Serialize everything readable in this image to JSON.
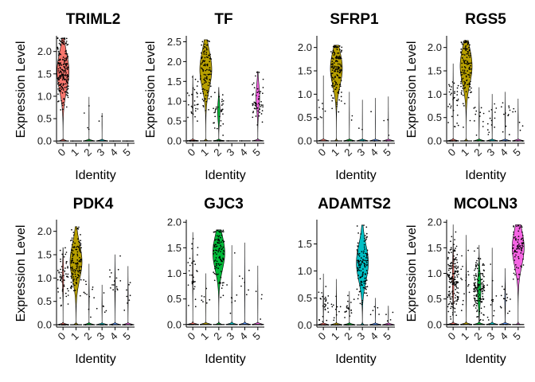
{
  "chart_data": [
    {
      "type": "violin",
      "title": "TRIML2",
      "ylabel": "Expression Level",
      "xlabel": "Identity",
      "categories": [
        "0",
        "1",
        "2",
        "3",
        "4",
        "5"
      ],
      "ylim": [
        -0.05,
        2.35
      ],
      "yticks": [
        0.0,
        0.5,
        1.0,
        1.5,
        2.0
      ],
      "ytick_labels": [
        "0.0",
        "0.5",
        "1.0",
        "1.5",
        "2.0"
      ],
      "colors": [
        "#F8766D",
        "#B79F00",
        "#00BA38",
        "#00BFC4",
        "#619CFF",
        "#F564E3"
      ],
      "groups": [
        {
          "identity": "0",
          "max": 2.3,
          "mode": 1.55,
          "frac_expr": 0.85,
          "n_points": 200
        },
        {
          "identity": "1",
          "max": 0.0,
          "mode": 0.0,
          "frac_expr": 0.0,
          "n_points": 1
        },
        {
          "identity": "2",
          "max": 0.98,
          "mode": 0.5,
          "frac_expr": 0.05,
          "n_points": 4
        },
        {
          "identity": "3",
          "max": 0.62,
          "mode": 0.4,
          "frac_expr": 0.05,
          "n_points": 2
        },
        {
          "identity": "4",
          "max": 0.0,
          "mode": 0.0,
          "frac_expr": 0.0,
          "n_points": 1
        },
        {
          "identity": "5",
          "max": 0.0,
          "mode": 0.0,
          "frac_expr": 0.0,
          "n_points": 1
        }
      ]
    },
    {
      "type": "violin",
      "title": "TF",
      "ylabel": "Expression Level",
      "xlabel": "Identity",
      "categories": [
        "0",
        "1",
        "2",
        "3",
        "4",
        "5"
      ],
      "ylim": [
        -0.06,
        2.65
      ],
      "yticks": [
        0.0,
        0.5,
        1.0,
        1.5,
        2.0,
        2.5
      ],
      "ytick_labels": [
        "0.0",
        "0.5",
        "1.0",
        "1.5",
        "2.0",
        "2.5"
      ],
      "colors": [
        "#F8766D",
        "#B79F00",
        "#00BA38",
        "#00BFC4",
        "#619CFF",
        "#F564E3"
      ],
      "groups": [
        {
          "identity": "0",
          "max": 1.65,
          "mode": 1.0,
          "frac_expr": 0.15,
          "n_points": 45
        },
        {
          "identity": "1",
          "max": 2.55,
          "mode": 1.8,
          "frac_expr": 0.92,
          "n_points": 110
        },
        {
          "identity": "2",
          "max": 1.35,
          "mode": 0.75,
          "frac_expr": 0.45,
          "n_points": 45
        },
        {
          "identity": "3",
          "max": 0.0,
          "mode": 0.0,
          "frac_expr": 0.0,
          "n_points": 1
        },
        {
          "identity": "4",
          "max": 0.0,
          "mode": 0.0,
          "frac_expr": 0.0,
          "n_points": 1
        },
        {
          "identity": "5",
          "max": 1.75,
          "mode": 1.1,
          "frac_expr": 0.55,
          "n_points": 55
        }
      ]
    },
    {
      "type": "violin",
      "title": "SFRP1",
      "ylabel": "",
      "xlabel": "Identity",
      "categories": [
        "0",
        "1",
        "2",
        "3",
        "4",
        "5"
      ],
      "ylim": [
        -0.05,
        2.25
      ],
      "yticks": [
        0.0,
        0.5,
        1.0,
        1.5,
        2.0
      ],
      "ytick_labels": [
        "0.0",
        "0.5",
        "1.0",
        "1.5",
        "2.0"
      ],
      "colors": [
        "#F8766D",
        "#B79F00",
        "#00BA38",
        "#00BFC4",
        "#619CFF",
        "#F564E3"
      ],
      "groups": [
        {
          "identity": "0",
          "max": 1.4,
          "mode": 0.5,
          "frac_expr": 0.03,
          "n_points": 8
        },
        {
          "identity": "1",
          "max": 2.05,
          "mode": 1.55,
          "frac_expr": 0.93,
          "n_points": 150
        },
        {
          "identity": "2",
          "max": 1.05,
          "mode": 0.5,
          "frac_expr": 0.05,
          "n_points": 6
        },
        {
          "identity": "3",
          "max": 0.88,
          "mode": 0.4,
          "frac_expr": 0.03,
          "n_points": 3
        },
        {
          "identity": "4",
          "max": 0.92,
          "mode": 0.4,
          "frac_expr": 0.03,
          "n_points": 3
        },
        {
          "identity": "5",
          "max": 0.95,
          "mode": 0.4,
          "frac_expr": 0.05,
          "n_points": 4
        }
      ]
    },
    {
      "type": "violin",
      "title": "RGS5",
      "ylabel": "Expression Level",
      "xlabel": "Identity",
      "categories": [
        "0",
        "1",
        "2",
        "3",
        "4",
        "5"
      ],
      "ylim": [
        -0.05,
        2.25
      ],
      "yticks": [
        0.0,
        0.5,
        1.0,
        1.5,
        2.0
      ],
      "ytick_labels": [
        "0.0",
        "0.5",
        "1.0",
        "1.5",
        "2.0"
      ],
      "colors": [
        "#F8766D",
        "#B79F00",
        "#00BA38",
        "#00BFC4",
        "#619CFF",
        "#F564E3"
      ],
      "groups": [
        {
          "identity": "0",
          "max": 1.65,
          "mode": 0.9,
          "frac_expr": 0.12,
          "n_points": 45
        },
        {
          "identity": "1",
          "max": 2.15,
          "mode": 1.6,
          "frac_expr": 0.92,
          "n_points": 130
        },
        {
          "identity": "2",
          "max": 1.15,
          "mode": 0.5,
          "frac_expr": 0.1,
          "n_points": 15
        },
        {
          "identity": "3",
          "max": 1.0,
          "mode": 0.45,
          "frac_expr": 0.1,
          "n_points": 15
        },
        {
          "identity": "4",
          "max": 1.05,
          "mode": 0.5,
          "frac_expr": 0.1,
          "n_points": 15
        },
        {
          "identity": "5",
          "max": 0.9,
          "mode": 0.45,
          "frac_expr": 0.08,
          "n_points": 10
        }
      ]
    },
    {
      "type": "violin",
      "title": "PDK4",
      "ylabel": "Expression Level",
      "xlabel": "Identity",
      "categories": [
        "0",
        "1",
        "2",
        "3",
        "4",
        "5"
      ],
      "ylim": [
        -0.05,
        2.25
      ],
      "yticks": [
        0.0,
        0.5,
        1.0,
        1.5,
        2.0
      ],
      "ytick_labels": [
        "0.0",
        "0.5",
        "1.0",
        "1.5",
        "2.0"
      ],
      "colors": [
        "#F8766D",
        "#B79F00",
        "#00BA38",
        "#00BFC4",
        "#619CFF",
        "#F564E3"
      ],
      "groups": [
        {
          "identity": "0",
          "max": 1.65,
          "mode": 1.05,
          "frac_expr": 0.3,
          "n_points": 70
        },
        {
          "identity": "1",
          "max": 2.1,
          "mode": 1.35,
          "frac_expr": 0.9,
          "n_points": 130
        },
        {
          "identity": "2",
          "max": 1.3,
          "mode": 0.6,
          "frac_expr": 0.12,
          "n_points": 15
        },
        {
          "identity": "3",
          "max": 0.85,
          "mode": 0.4,
          "frac_expr": 0.08,
          "n_points": 10
        },
        {
          "identity": "4",
          "max": 1.5,
          "mode": 0.8,
          "frac_expr": 0.15,
          "n_points": 18
        },
        {
          "identity": "5",
          "max": 1.25,
          "mode": 0.6,
          "frac_expr": 0.12,
          "n_points": 12
        }
      ]
    },
    {
      "type": "violin",
      "title": "GJC3",
      "ylabel": "",
      "xlabel": "Identity",
      "categories": [
        "0",
        "1",
        "2",
        "3",
        "4",
        "5"
      ],
      "ylim": [
        -0.05,
        2.05
      ],
      "yticks": [
        0.0,
        0.5,
        1.0,
        1.5,
        2.0
      ],
      "ytick_labels": [
        "0.0",
        "0.5",
        "1.0",
        "1.5",
        "2.0"
      ],
      "colors": [
        "#F8766D",
        "#B79F00",
        "#00BA38",
        "#00BFC4",
        "#619CFF",
        "#F564E3"
      ],
      "groups": [
        {
          "identity": "0",
          "max": 1.8,
          "mode": 1.0,
          "frac_expr": 0.15,
          "n_points": 45
        },
        {
          "identity": "1",
          "max": 1.0,
          "mode": 0.5,
          "frac_expr": 0.05,
          "n_points": 8
        },
        {
          "identity": "2",
          "max": 1.85,
          "mode": 1.4,
          "frac_expr": 0.88,
          "n_points": 110
        },
        {
          "identity": "3",
          "max": 1.55,
          "mode": 0.6,
          "frac_expr": 0.06,
          "n_points": 8
        },
        {
          "identity": "4",
          "max": 1.6,
          "mode": 0.7,
          "frac_expr": 0.08,
          "n_points": 10
        },
        {
          "identity": "5",
          "max": 1.15,
          "mode": 0.5,
          "frac_expr": 0.05,
          "n_points": 6
        }
      ]
    },
    {
      "type": "violin",
      "title": "ADAMTS2",
      "ylabel": "",
      "xlabel": "Identity",
      "categories": [
        "0",
        "1",
        "2",
        "3",
        "4",
        "5"
      ],
      "ylim": [
        -0.04,
        1.95
      ],
      "yticks": [
        0.0,
        0.5,
        1.0,
        1.5
      ],
      "ytick_labels": [
        "0.0",
        "0.5",
        "1.0",
        "1.5"
      ],
      "colors": [
        "#F8766D",
        "#B79F00",
        "#00BA38",
        "#00BFC4",
        "#619CFF",
        "#F564E3"
      ],
      "groups": [
        {
          "identity": "0",
          "max": 0.95,
          "mode": 0.4,
          "frac_expr": 0.12,
          "n_points": 40
        },
        {
          "identity": "1",
          "max": 0.85,
          "mode": 0.4,
          "frac_expr": 0.08,
          "n_points": 15
        },
        {
          "identity": "2",
          "max": 0.62,
          "mode": 0.3,
          "frac_expr": 0.1,
          "n_points": 20
        },
        {
          "identity": "3",
          "max": 1.85,
          "mode": 1.15,
          "frac_expr": 0.93,
          "n_points": 130
        },
        {
          "identity": "4",
          "max": 0.5,
          "mode": 0.25,
          "frac_expr": 0.05,
          "n_points": 6
        },
        {
          "identity": "5",
          "max": 0.35,
          "mode": 0.2,
          "frac_expr": 0.05,
          "n_points": 6
        }
      ]
    },
    {
      "type": "violin",
      "title": "MCOLN3",
      "ylabel": "Expression Level",
      "xlabel": "Identity",
      "categories": [
        "0",
        "1",
        "2",
        "3",
        "4",
        "5"
      ],
      "ylim": [
        -0.05,
        2.05
      ],
      "yticks": [
        0.0,
        0.5,
        1.0,
        1.5,
        2.0
      ],
      "ytick_labels": [
        "0.0",
        "0.5",
        "1.0",
        "1.5",
        "2.0"
      ],
      "colors": [
        "#F8766D",
        "#B79F00",
        "#00BA38",
        "#00BFC4",
        "#619CFF",
        "#F564E3"
      ],
      "groups": [
        {
          "identity": "0",
          "max": 1.95,
          "mode": 0.9,
          "frac_expr": 0.35,
          "n_points": 220
        },
        {
          "identity": "1",
          "max": 1.75,
          "mode": 0.8,
          "frac_expr": 0.12,
          "n_points": 25
        },
        {
          "identity": "2",
          "max": 1.55,
          "mode": 0.7,
          "frac_expr": 0.55,
          "n_points": 140
        },
        {
          "identity": "3",
          "max": 1.5,
          "mode": 0.6,
          "frac_expr": 0.08,
          "n_points": 15
        },
        {
          "identity": "4",
          "max": 1.1,
          "mode": 0.5,
          "frac_expr": 0.2,
          "n_points": 18
        },
        {
          "identity": "5",
          "max": 1.95,
          "mode": 1.5,
          "frac_expr": 0.92,
          "n_points": 80
        }
      ]
    }
  ]
}
